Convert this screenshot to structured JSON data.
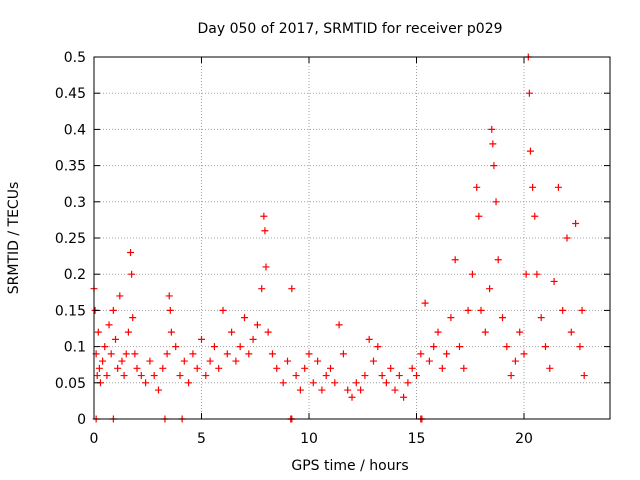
{
  "chart_data": {
    "type": "scatter",
    "title": "Day 050 of 2017, SRMTID for receiver p029",
    "xlabel": "GPS time / hours",
    "ylabel": "SRMTID / TECUs",
    "xlim": [
      0,
      24
    ],
    "ylim": [
      0,
      0.5
    ],
    "xticks": [
      {
        "value": 0,
        "label": "0"
      },
      {
        "value": 5,
        "label": "5"
      },
      {
        "value": 10,
        "label": "10"
      },
      {
        "value": 15,
        "label": "15"
      },
      {
        "value": 20,
        "label": "20"
      }
    ],
    "yticks": [
      {
        "value": 0,
        "label": "0"
      },
      {
        "value": 0.05,
        "label": "0.05"
      },
      {
        "value": 0.1,
        "label": "0.1"
      },
      {
        "value": 0.15,
        "label": "0.15"
      },
      {
        "value": 0.2,
        "label": "0.2"
      },
      {
        "value": 0.25,
        "label": "0.25"
      },
      {
        "value": 0.3,
        "label": "0.3"
      },
      {
        "value": 0.35,
        "label": "0.35"
      },
      {
        "value": 0.4,
        "label": "0.4"
      },
      {
        "value": 0.45,
        "label": "0.45"
      },
      {
        "value": 0.5,
        "label": "0.5"
      }
    ],
    "grid": true,
    "marker": "+",
    "series": [
      {
        "name": "SRMTID",
        "color": "#ff0000",
        "points": [
          [
            0.0,
            0.18
          ],
          [
            0.05,
            0.15
          ],
          [
            0.1,
            0.09
          ],
          [
            0.15,
            0.06
          ],
          [
            0.2,
            0.12
          ],
          [
            0.25,
            0.07
          ],
          [
            0.3,
            0.05
          ],
          [
            0.4,
            0.08
          ],
          [
            0.5,
            0.1
          ],
          [
            0.6,
            0.06
          ],
          [
            0.7,
            0.13
          ],
          [
            0.8,
            0.09
          ],
          [
            0.9,
            0.15
          ],
          [
            1.0,
            0.11
          ],
          [
            1.1,
            0.07
          ],
          [
            1.2,
            0.17
          ],
          [
            1.3,
            0.08
          ],
          [
            1.4,
            0.06
          ],
          [
            1.5,
            0.09
          ],
          [
            1.6,
            0.12
          ],
          [
            1.7,
            0.23
          ],
          [
            1.75,
            0.2
          ],
          [
            1.8,
            0.14
          ],
          [
            1.9,
            0.09
          ],
          [
            2.0,
            0.07
          ],
          [
            2.2,
            0.06
          ],
          [
            2.4,
            0.05
          ],
          [
            2.6,
            0.08
          ],
          [
            2.8,
            0.06
          ],
          [
            3.0,
            0.04
          ],
          [
            3.2,
            0.07
          ],
          [
            3.4,
            0.09
          ],
          [
            3.5,
            0.17
          ],
          [
            3.55,
            0.15
          ],
          [
            3.6,
            0.12
          ],
          [
            3.8,
            0.1
          ],
          [
            4.0,
            0.06
          ],
          [
            4.2,
            0.08
          ],
          [
            4.4,
            0.05
          ],
          [
            4.6,
            0.09
          ],
          [
            4.8,
            0.07
          ],
          [
            5.0,
            0.11
          ],
          [
            5.2,
            0.06
          ],
          [
            5.4,
            0.08
          ],
          [
            5.6,
            0.1
          ],
          [
            5.8,
            0.07
          ],
          [
            6.0,
            0.15
          ],
          [
            6.2,
            0.09
          ],
          [
            6.4,
            0.12
          ],
          [
            6.6,
            0.08
          ],
          [
            6.8,
            0.1
          ],
          [
            7.0,
            0.14
          ],
          [
            7.2,
            0.09
          ],
          [
            7.4,
            0.11
          ],
          [
            7.6,
            0.13
          ],
          [
            7.8,
            0.18
          ],
          [
            7.9,
            0.28
          ],
          [
            7.95,
            0.26
          ],
          [
            8.0,
            0.21
          ],
          [
            8.1,
            0.12
          ],
          [
            8.3,
            0.09
          ],
          [
            8.5,
            0.07
          ],
          [
            8.8,
            0.05
          ],
          [
            9.0,
            0.08
          ],
          [
            9.2,
            0.18
          ],
          [
            9.4,
            0.06
          ],
          [
            9.6,
            0.04
          ],
          [
            9.8,
            0.07
          ],
          [
            10.0,
            0.09
          ],
          [
            10.2,
            0.05
          ],
          [
            10.4,
            0.08
          ],
          [
            10.6,
            0.04
          ],
          [
            10.8,
            0.06
          ],
          [
            11.0,
            0.07
          ],
          [
            11.2,
            0.05
          ],
          [
            11.4,
            0.13
          ],
          [
            11.6,
            0.09
          ],
          [
            11.8,
            0.04
          ],
          [
            12.0,
            0.03
          ],
          [
            12.2,
            0.05
          ],
          [
            12.4,
            0.04
          ],
          [
            12.6,
            0.06
          ],
          [
            12.8,
            0.11
          ],
          [
            13.0,
            0.08
          ],
          [
            13.2,
            0.1
          ],
          [
            13.4,
            0.06
          ],
          [
            13.6,
            0.05
          ],
          [
            13.8,
            0.07
          ],
          [
            14.0,
            0.04
          ],
          [
            14.2,
            0.06
          ],
          [
            14.4,
            0.03
          ],
          [
            14.6,
            0.05
          ],
          [
            14.8,
            0.07
          ],
          [
            15.0,
            0.06
          ],
          [
            15.2,
            0.09
          ],
          [
            15.4,
            0.16
          ],
          [
            15.6,
            0.08
          ],
          [
            15.8,
            0.1
          ],
          [
            16.0,
            0.12
          ],
          [
            16.2,
            0.07
          ],
          [
            16.4,
            0.09
          ],
          [
            16.6,
            0.14
          ],
          [
            16.8,
            0.22
          ],
          [
            17.0,
            0.1
          ],
          [
            17.2,
            0.07
          ],
          [
            17.4,
            0.15
          ],
          [
            17.6,
            0.2
          ],
          [
            17.8,
            0.32
          ],
          [
            17.9,
            0.28
          ],
          [
            18.0,
            0.15
          ],
          [
            18.2,
            0.12
          ],
          [
            18.4,
            0.18
          ],
          [
            18.5,
            0.4
          ],
          [
            18.55,
            0.38
          ],
          [
            18.6,
            0.35
          ],
          [
            18.7,
            0.3
          ],
          [
            18.8,
            0.22
          ],
          [
            19.0,
            0.14
          ],
          [
            19.2,
            0.1
          ],
          [
            19.4,
            0.06
          ],
          [
            19.6,
            0.08
          ],
          [
            19.8,
            0.12
          ],
          [
            20.0,
            0.09
          ],
          [
            20.1,
            0.2
          ],
          [
            20.2,
            0.5
          ],
          [
            20.25,
            0.45
          ],
          [
            20.3,
            0.37
          ],
          [
            20.4,
            0.32
          ],
          [
            20.5,
            0.28
          ],
          [
            20.6,
            0.2
          ],
          [
            20.8,
            0.14
          ],
          [
            21.0,
            0.1
          ],
          [
            21.2,
            0.07
          ],
          [
            21.4,
            0.19
          ],
          [
            21.6,
            0.32
          ],
          [
            21.8,
            0.15
          ],
          [
            22.0,
            0.25
          ],
          [
            22.2,
            0.12
          ],
          [
            22.4,
            0.27
          ],
          [
            22.6,
            0.1
          ],
          [
            22.7,
            0.15
          ],
          [
            22.8,
            0.06
          ]
        ],
        "zero_points": [
          0.1,
          0.9,
          3.3,
          4.1,
          9.15,
          9.2,
          15.2,
          15.25
        ]
      }
    ]
  }
}
